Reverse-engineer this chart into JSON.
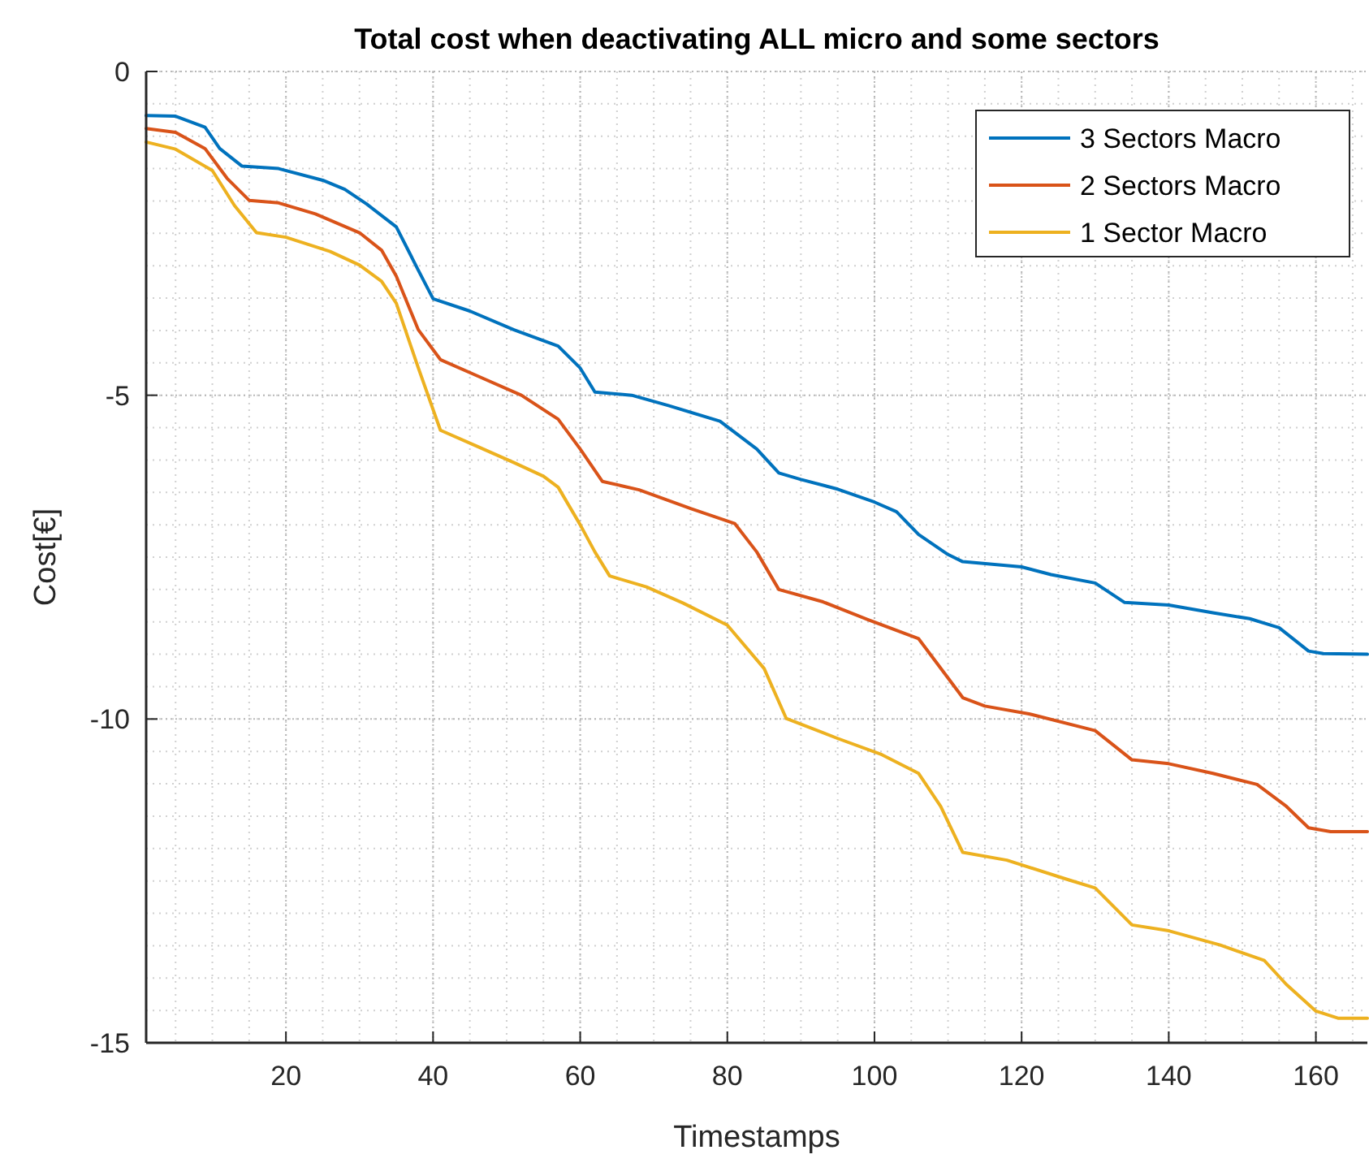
{
  "chart_data": {
    "type": "line",
    "title": "Total cost when deactivating ALL micro and some sectors",
    "xlabel": "Timestamps",
    "ylabel": "Cost[€]",
    "xlim": [
      1,
      167
    ],
    "xticks": [
      20,
      40,
      60,
      80,
      100,
      120,
      140,
      160
    ],
    "ylim": [
      -15,
      0
    ],
    "yticks": [
      -15,
      -10,
      -5,
      0
    ],
    "grid": true,
    "legend": "top right",
    "line_style": "solid",
    "marker": "none",
    "series": [
      {
        "name": "3 Sectors Macro",
        "color": "#0072bd",
        "x": [
          1,
          5,
          9,
          11,
          14,
          19,
          25,
          28,
          31,
          35,
          38,
          40,
          45,
          51,
          57,
          60,
          62,
          67,
          72,
          79,
          84,
          87,
          90,
          95,
          100,
          103,
          106,
          110,
          112,
          120,
          124,
          130,
          134,
          140,
          146,
          151,
          155,
          159,
          161,
          167
        ],
        "values": [
          -0.68,
          -0.69,
          -0.86,
          -1.19,
          -1.46,
          -1.5,
          -1.68,
          -1.82,
          -2.05,
          -2.4,
          -3.07,
          -3.51,
          -3.7,
          -3.99,
          -4.24,
          -4.58,
          -4.95,
          -5.0,
          -5.16,
          -5.4,
          -5.83,
          -6.2,
          -6.3,
          -6.45,
          -6.65,
          -6.8,
          -7.15,
          -7.46,
          -7.57,
          -7.65,
          -7.77,
          -7.9,
          -8.2,
          -8.24,
          -8.36,
          -8.45,
          -8.59,
          -8.95,
          -8.99,
          -9.0
        ]
      },
      {
        "name": "2 Sectors Macro",
        "color": "#d95319",
        "x": [
          1,
          5,
          9,
          12,
          15,
          19,
          24,
          30,
          33,
          35,
          38,
          41,
          46,
          52,
          57,
          60,
          63,
          68,
          75,
          81,
          84,
          87,
          93,
          99,
          106,
          112,
          115,
          121,
          130,
          135,
          140,
          146,
          152,
          156,
          159,
          162,
          167
        ],
        "values": [
          -0.88,
          -0.94,
          -1.19,
          -1.65,
          -1.99,
          -2.03,
          -2.2,
          -2.49,
          -2.76,
          -3.16,
          -3.99,
          -4.45,
          -4.7,
          -5.0,
          -5.37,
          -5.83,
          -6.33,
          -6.46,
          -6.75,
          -6.98,
          -7.42,
          -8.0,
          -8.19,
          -8.46,
          -8.76,
          -9.67,
          -9.8,
          -9.92,
          -10.18,
          -10.63,
          -10.69,
          -10.84,
          -11.01,
          -11.35,
          -11.68,
          -11.74,
          -11.74
        ]
      },
      {
        "name": "1 Sector Macro",
        "color": "#edb120",
        "x": [
          1,
          5,
          10,
          13,
          16,
          20,
          26,
          30,
          33,
          35,
          38,
          41,
          46,
          51,
          55,
          57,
          60,
          62,
          64,
          69,
          74,
          80,
          85,
          88,
          95,
          101,
          106,
          109,
          112,
          118,
          126,
          130,
          135,
          140,
          147,
          153,
          156,
          160,
          163,
          167
        ],
        "values": [
          -1.09,
          -1.2,
          -1.53,
          -2.07,
          -2.49,
          -2.56,
          -2.78,
          -2.99,
          -3.24,
          -3.58,
          -4.58,
          -5.54,
          -5.79,
          -6.04,
          -6.25,
          -6.42,
          -7.0,
          -7.42,
          -7.79,
          -7.96,
          -8.21,
          -8.55,
          -9.22,
          -9.99,
          -10.3,
          -10.55,
          -10.84,
          -11.35,
          -12.06,
          -12.18,
          -12.47,
          -12.61,
          -13.18,
          -13.27,
          -13.49,
          -13.73,
          -14.1,
          -14.51,
          -14.62,
          -14.62
        ]
      }
    ]
  }
}
